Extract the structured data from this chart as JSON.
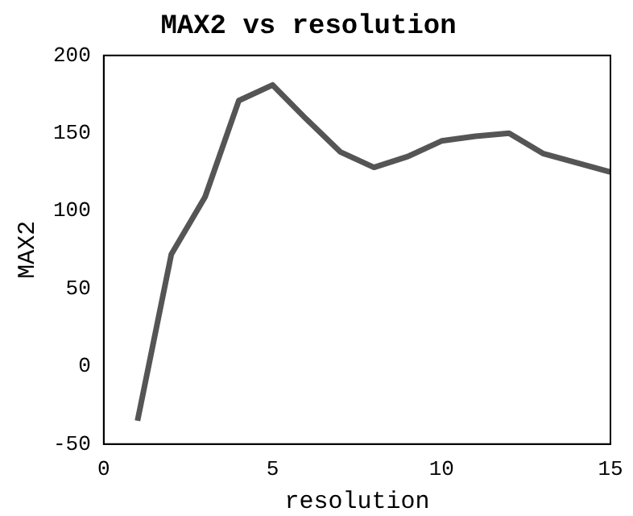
{
  "chart_data": {
    "type": "line",
    "title": "MAX2 vs resolution",
    "xlabel": "resolution",
    "ylabel": "MAX2",
    "x": [
      1,
      2,
      3,
      4,
      5,
      6,
      7,
      8,
      9,
      10,
      11,
      12,
      13,
      14,
      15
    ],
    "series": [
      {
        "color": "#555555",
        "values": [
          -35,
          72,
          109,
          171,
          181,
          159,
          138,
          128,
          135,
          145,
          148,
          150,
          137,
          131,
          125
        ]
      }
    ],
    "xlim": [
      0,
      15
    ],
    "xticks": [
      0,
      5,
      10,
      15
    ],
    "ylim": [
      -50,
      200
    ],
    "yticks": [
      -50,
      0,
      50,
      100,
      150,
      200
    ],
    "grid": false,
    "legend": false,
    "marker": "none",
    "line_style": "solid"
  }
}
